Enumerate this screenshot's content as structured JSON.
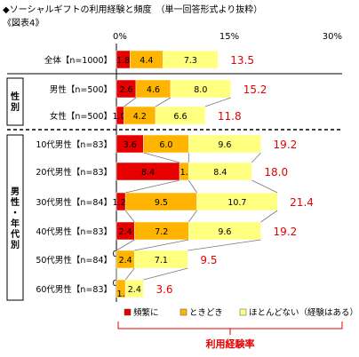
{
  "header": {
    "title": "◆ソーシャルギフトの利用経験と頻度　（単一回答形式より抜粋）",
    "figure_label": "《図表4》"
  },
  "groups": [
    {
      "label": "性別"
    },
    {
      "label": "男性・年代別"
    }
  ],
  "annotation": "利用経験率",
  "chart_data": {
    "type": "bar",
    "orientation": "horizontal",
    "stacked": true,
    "categories": [
      "全体【n=1000】",
      "男性【n=500】",
      "女性【n=500】",
      "10代男性【n=83】",
      "20代男性【n=83】",
      "30代男性【n=84】",
      "40代男性【n=83】",
      "50代男性【n=84】",
      "60代男性【n=83】"
    ],
    "series": [
      {
        "name": "頻繁に",
        "color": "#e60000",
        "values": [
          1.8,
          2.6,
          1.0,
          3.6,
          8.4,
          1.2,
          2.4,
          0.0,
          0.0
        ]
      },
      {
        "name": "ときどき",
        "color": "#ffb400",
        "values": [
          4.4,
          4.6,
          4.2,
          6.0,
          1.2,
          9.5,
          7.2,
          2.4,
          1.2
        ]
      },
      {
        "name": "ほとんどない（経験はある）",
        "color": "#ffff80",
        "values": [
          7.3,
          8.0,
          6.6,
          9.6,
          8.4,
          10.7,
          9.6,
          7.1,
          2.4
        ]
      }
    ],
    "value_labels": [
      [
        "1.8",
        "4.4",
        "7.3"
      ],
      [
        "2.6",
        "4.6",
        "8.0"
      ],
      [
        "1.0",
        "4.2",
        "6.6"
      ],
      [
        "3.6",
        "6.0",
        "9.6"
      ],
      [
        "8.4",
        "1.2",
        "8.4"
      ],
      [
        "1.2",
        "9.5",
        "10.7"
      ],
      [
        "2.4",
        "7.2",
        "9.6"
      ],
      [
        "0.0",
        "2.4",
        "7.1"
      ],
      [
        "0.0",
        "1.2",
        "2.4"
      ]
    ],
    "totals": [
      13.5,
      15.2,
      11.8,
      19.2,
      18.0,
      21.4,
      19.2,
      9.5,
      3.6
    ],
    "total_labels": [
      "13.5",
      "15.2",
      "11.8",
      "19.2",
      "18.0",
      "21.4",
      "19.2",
      "9.5",
      "3.6"
    ],
    "xlim": [
      0,
      30
    ],
    "xticks": [
      "0%",
      "15%",
      "30%"
    ],
    "legend_position": "bottom"
  }
}
